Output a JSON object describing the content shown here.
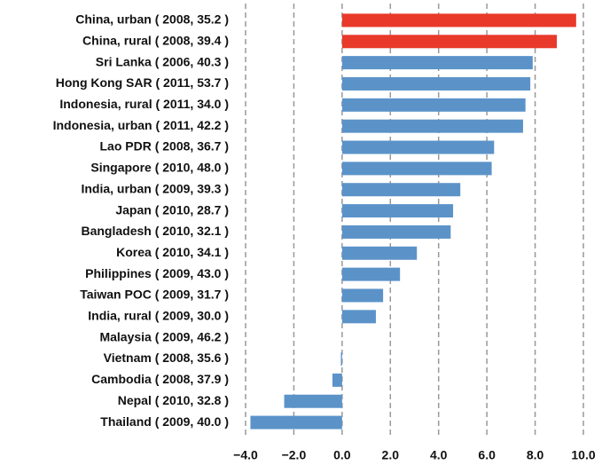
{
  "chart_data": {
    "type": "hbar",
    "categories": [
      "China, urban ( 2008, 35.2 )",
      "China, rural ( 2008, 39.4 )",
      "Sri Lanka ( 2006, 40.3 )",
      "Hong Kong SAR ( 2011, 53.7 )",
      "Indonesia, rural ( 2011, 34.0 )",
      "Indonesia, urban ( 2011, 42.2 )",
      "Lao PDR ( 2008, 36.7 )",
      "Singapore ( 2010, 48.0 )",
      "India, urban ( 2009, 39.3 )",
      "Japan ( 2010, 28.7 )",
      "Bangladesh ( 2010, 32.1 )",
      "Korea ( 2010, 34.1 )",
      "Philippines ( 2009, 43.0 )",
      "Taiwan POC ( 2009, 31.7 )",
      "India, rural ( 2009, 30.0 )",
      "Malaysia ( 2009, 46.2 )",
      "Vietnam ( 2008, 35.6 )",
      "Cambodia ( 2008, 37.9 )",
      "Nepal ( 2010, 32.8 )",
      "Thailand ( 2009, 40.0 )"
    ],
    "values": [
      9.7,
      8.9,
      7.9,
      7.8,
      7.6,
      7.5,
      6.3,
      6.2,
      4.9,
      4.6,
      4.5,
      3.1,
      2.4,
      1.7,
      1.4,
      0,
      -0.05,
      -0.4,
      -2.4,
      -3.8
    ],
    "colors": [
      "#e8392a",
      "#e8392a",
      "#5b93c9",
      "#5b93c9",
      "#5b93c9",
      "#5b93c9",
      "#5b93c9",
      "#5b93c9",
      "#5b93c9",
      "#5b93c9",
      "#5b93c9",
      "#5b93c9",
      "#5b93c9",
      "#5b93c9",
      "#5b93c9",
      "#5b93c9",
      "#5b93c9",
      "#5b93c9",
      "#5b93c9",
      "#5b93c9"
    ],
    "xlim": [
      -4,
      10
    ],
    "xticks": [
      {
        "value": -4,
        "label": "−4.0"
      },
      {
        "value": -2,
        "label": "−2.0"
      },
      {
        "value": 0,
        "label": "0.0"
      },
      {
        "value": 2,
        "label": "2.0"
      },
      {
        "value": 4,
        "label": "4.0"
      },
      {
        "value": 6,
        "label": "6.0"
      },
      {
        "value": 8,
        "label": "8.0"
      },
      {
        "value": 10,
        "label": "10.0"
      }
    ],
    "grid": true
  }
}
